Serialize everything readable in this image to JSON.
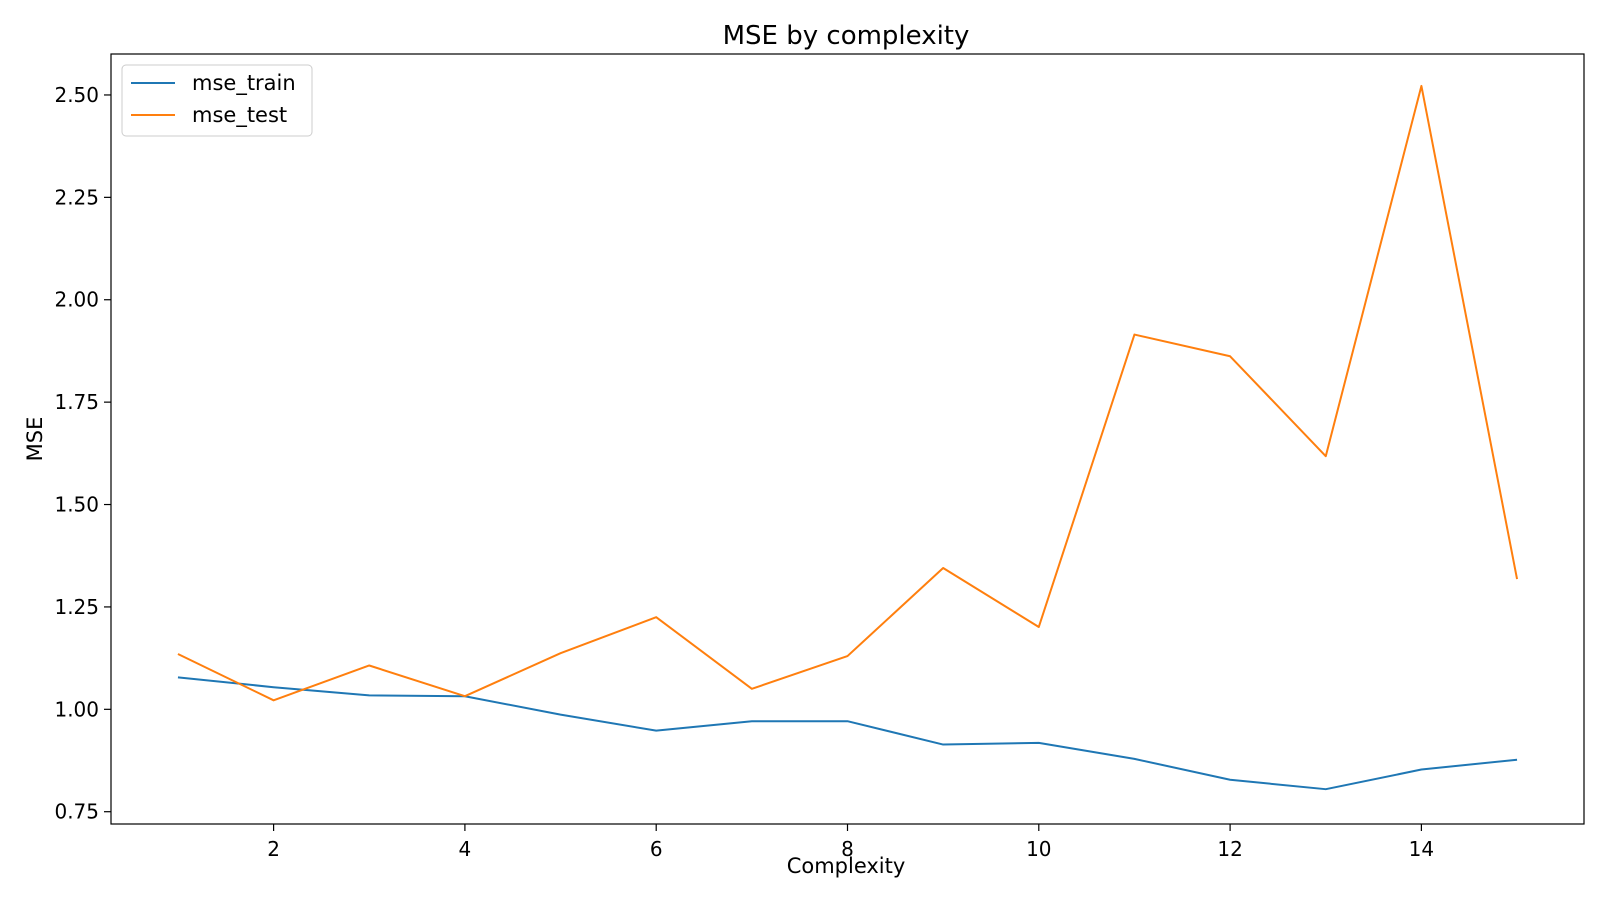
{
  "chart_data": {
    "type": "line",
    "title": "MSE by complexity",
    "xlabel": "Complexity",
    "ylabel": "MSE",
    "xlim": [
      0.3,
      15.7
    ],
    "ylim": [
      0.72,
      2.6
    ],
    "x_ticks": [
      2,
      4,
      6,
      8,
      10,
      12,
      14
    ],
    "x_tick_labels": [
      "2",
      "4",
      "6",
      "8",
      "10",
      "12",
      "14"
    ],
    "y_ticks": [
      0.75,
      1.0,
      1.25,
      1.5,
      1.75,
      2.0,
      2.25,
      2.5
    ],
    "y_tick_labels": [
      "0.75",
      "1.00",
      "1.25",
      "1.50",
      "1.75",
      "2.00",
      "2.25",
      "2.50"
    ],
    "grid": false,
    "legend_position": "top-left",
    "x": [
      1,
      2,
      3,
      4,
      5,
      6,
      7,
      8,
      9,
      10,
      11,
      12,
      13,
      14,
      15
    ],
    "series": [
      {
        "name": "mse_train",
        "color": "#1f77b4",
        "values": [
          1.078,
          1.054,
          1.034,
          1.032,
          0.987,
          0.948,
          0.971,
          0.971,
          0.914,
          0.918,
          0.879,
          0.828,
          0.805,
          0.853,
          0.877
        ]
      },
      {
        "name": "mse_test",
        "color": "#ff7f0e",
        "values": [
          1.135,
          1.022,
          1.107,
          1.032,
          1.137,
          1.225,
          1.05,
          1.13,
          1.345,
          1.201,
          1.915,
          1.862,
          1.618,
          2.522,
          1.318
        ]
      }
    ]
  }
}
